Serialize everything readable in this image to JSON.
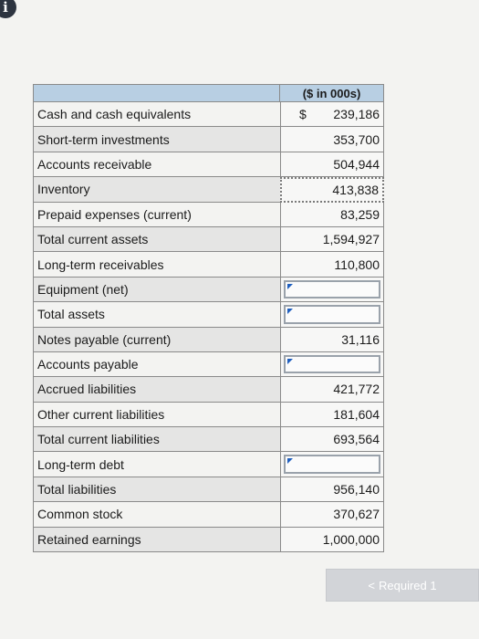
{
  "info_icon": "i",
  "table": {
    "header": "($ in 000s)",
    "currency_symbol": "$",
    "rows": [
      {
        "label": "Cash and cash equivalents",
        "value": "239,186"
      },
      {
        "label": "Short-term investments",
        "value": "353,700"
      },
      {
        "label": "Accounts receivable",
        "value": "504,944"
      },
      {
        "label": "Inventory",
        "value": "413,838"
      },
      {
        "label": "Prepaid expenses (current)",
        "value": "83,259"
      },
      {
        "label": "Total current assets",
        "value": "1,594,927"
      },
      {
        "label": "Long-term receivables",
        "value": "110,800"
      },
      {
        "label": "Equipment (net)",
        "value": ""
      },
      {
        "label": "Total assets",
        "value": ""
      },
      {
        "label": "Notes payable (current)",
        "value": "31,116"
      },
      {
        "label": "Accounts payable",
        "value": ""
      },
      {
        "label": "Accrued liabilities",
        "value": "421,772"
      },
      {
        "label": "Other current liabilities",
        "value": "181,604"
      },
      {
        "label": "Total current liabilities",
        "value": "693,564"
      },
      {
        "label": "Long-term debt",
        "value": ""
      },
      {
        "label": "Total liabilities",
        "value": "956,140"
      },
      {
        "label": "Common stock",
        "value": "370,627"
      },
      {
        "label": "Retained earnings",
        "value": "1,000,000"
      }
    ]
  },
  "nav": {
    "prev_chevron": "<",
    "required_label": "Required 1"
  },
  "colors": {
    "header_blue": "#b8cfe3",
    "page_bg": "#f3f3f1",
    "button_bg": "#d2d4d8",
    "input_flag": "#1f5fbf"
  }
}
